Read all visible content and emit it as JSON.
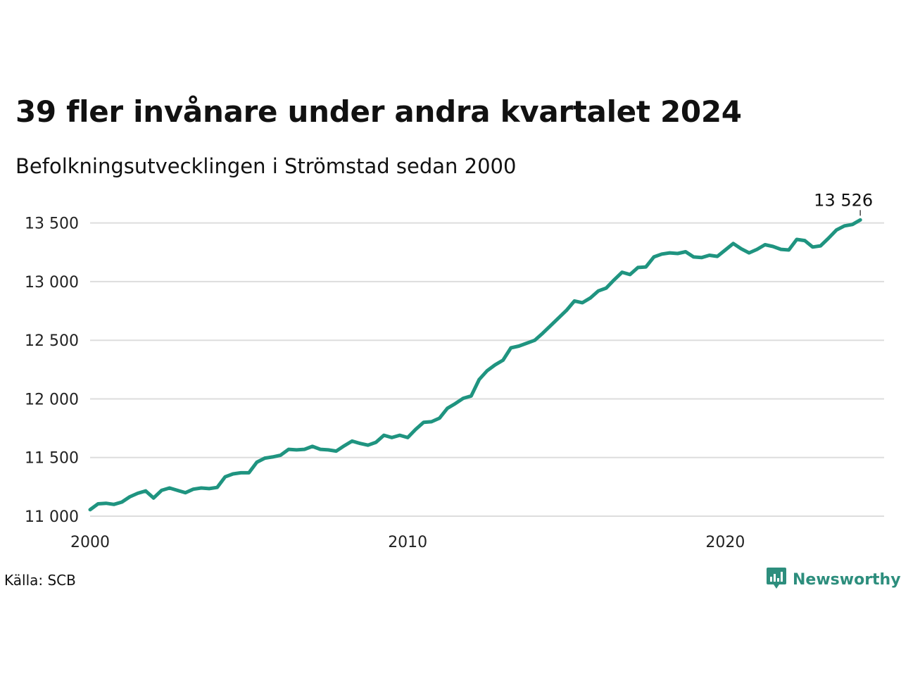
{
  "header": {
    "title": "39 fler invånare under andra kvartalet 2024",
    "subtitle": "Befolkningsutvecklingen i Strömstad sedan 2000"
  },
  "footer": {
    "source": "Källa: SCB",
    "brand": "Newsworthy",
    "brand_icon": "bar-chart-speech-bubble-icon",
    "brand_color": "#2d8e7d"
  },
  "chart_data": {
    "type": "line",
    "title": "39 fler invånare under andra kvartalet 2024",
    "subtitle": "Befolkningsutvecklingen i Strömstad sedan 2000",
    "xlabel": "",
    "ylabel": "",
    "xlim": [
      2000,
      2025
    ],
    "ylim": [
      11000,
      13600
    ],
    "x_ticks": [
      {
        "value": 2000,
        "label": "2000"
      },
      {
        "value": 2010,
        "label": "2010"
      },
      {
        "value": 2020,
        "label": "2020"
      }
    ],
    "y_ticks": [
      {
        "value": 11000,
        "label": "11 000"
      },
      {
        "value": 11500,
        "label": "11 500"
      },
      {
        "value": 12000,
        "label": "12 000"
      },
      {
        "value": 12500,
        "label": "12 500"
      },
      {
        "value": 13000,
        "label": "13 000"
      },
      {
        "value": 13500,
        "label": "13 500"
      }
    ],
    "grid": "horizontal",
    "line_color": "#1f9480",
    "end_label": "13 526",
    "series": [
      {
        "x": [
          "2000Q1",
          "2000Q2",
          "2000Q3",
          "2000Q4",
          "2001Q1",
          "2001Q2",
          "2001Q3",
          "2001Q4",
          "2002Q1",
          "2002Q2",
          "2002Q3",
          "2002Q4",
          "2003Q1",
          "2003Q2",
          "2003Q3",
          "2003Q4",
          "2004Q1",
          "2004Q2",
          "2004Q3",
          "2004Q4",
          "2005Q1",
          "2005Q2",
          "2005Q3",
          "2005Q4",
          "2006Q1",
          "2006Q2",
          "2006Q3",
          "2006Q4",
          "2007Q1",
          "2007Q2",
          "2007Q3",
          "2007Q4",
          "2008Q1",
          "2008Q2",
          "2008Q3",
          "2008Q4",
          "2009Q1",
          "2009Q2",
          "2009Q3",
          "2009Q4",
          "2010Q1",
          "2010Q2",
          "2010Q3",
          "2010Q4",
          "2011Q1",
          "2011Q2",
          "2011Q3",
          "2011Q4",
          "2012Q1",
          "2012Q2",
          "2012Q3",
          "2012Q4",
          "2013Q1",
          "2013Q2",
          "2013Q3",
          "2013Q4",
          "2014Q1",
          "2014Q2",
          "2014Q3",
          "2014Q4",
          "2015Q1",
          "2015Q2",
          "2015Q3",
          "2015Q4",
          "2016Q1",
          "2016Q2",
          "2016Q3",
          "2016Q4",
          "2017Q1",
          "2017Q2",
          "2017Q3",
          "2017Q4",
          "2018Q1",
          "2018Q2",
          "2018Q3",
          "2018Q4",
          "2019Q1",
          "2019Q2",
          "2019Q3",
          "2019Q4",
          "2020Q1",
          "2020Q2",
          "2020Q3",
          "2020Q4",
          "2021Q1",
          "2021Q2",
          "2021Q3",
          "2021Q4",
          "2022Q1",
          "2022Q2",
          "2022Q3",
          "2022Q4",
          "2023Q1",
          "2023Q2",
          "2023Q3",
          "2023Q4",
          "2024Q1",
          "2024Q2"
        ],
        "values": [
          11055,
          11105,
          11110,
          11100,
          11120,
          11165,
          11195,
          11215,
          11155,
          11220,
          11240,
          11220,
          11200,
          11230,
          11240,
          11235,
          11245,
          11335,
          11360,
          11370,
          11370,
          11460,
          11495,
          11505,
          11520,
          11570,
          11565,
          11570,
          11595,
          11570,
          11565,
          11555,
          11600,
          11640,
          11620,
          11605,
          11630,
          11690,
          11670,
          11690,
          11670,
          11740,
          11800,
          11805,
          11835,
          11920,
          11960,
          12005,
          12025,
          12165,
          12240,
          12290,
          12330,
          12435,
          12450,
          12475,
          12500,
          12560,
          12625,
          12690,
          12755,
          12835,
          12820,
          12860,
          12920,
          12945,
          13015,
          13080,
          13060,
          13120,
          13125,
          13210,
          13235,
          13245,
          13240,
          13255,
          13210,
          13205,
          13225,
          13215,
          13270,
          13325,
          13280,
          13245,
          13275,
          13315,
          13300,
          13275,
          13270,
          13360,
          13350,
          13295,
          13305,
          13370,
          13440,
          13475,
          13487,
          13526
        ]
      }
    ]
  }
}
